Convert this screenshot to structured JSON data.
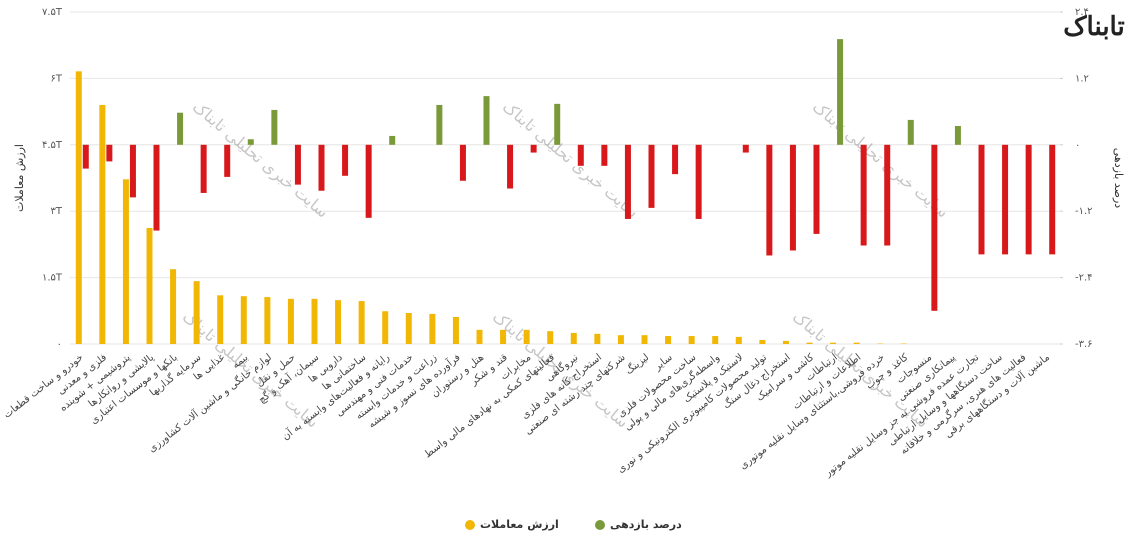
{
  "chart_data": {
    "type": "bar",
    "logo": "تابناک",
    "watermark": "سایت خبری تحلیلی تابناک",
    "ylabel": "ارزش معاملات",
    "y2label": "درصد بازدهی",
    "categories": [
      "خودرو و ساخت قطعات",
      "فلزی و معدنی",
      "پتروشیمی + شوینده",
      "پالایشی و روانکارها",
      "بانکها و موسسات اعتباری",
      "سرمایه گذاریها",
      "غذایی ها",
      "بیمه",
      "لوازم خانگی و ماشین آلات کشاورزی",
      "حمل و نقل",
      "سیمان، آهک و گچ",
      "دارویی ها",
      "ساختمانی ها",
      "رایانه و فعالیت‌های وابسته به آن",
      "خدمات فنی و مهندسی",
      "زراعت و خدمات وابسته",
      "فرآورده های نسوز و شیشه",
      "هتل و رستوران",
      "قند و شکر",
      "مخابرات",
      "فعالیتهای کمکی به نهادهای مالی واسط",
      "نیروگاهی",
      "استخراج کانه های فلزی",
      "شرکتهای چند رشته ای صنعتی",
      "لیزینگ",
      "سایر",
      "ساخت محصولات فلزی",
      "واسطه‌گری‌های مالی و پولی",
      "لاستیک و پلاستیک",
      "تولید محصولات کامپیوتری الکترونیکی و نوری",
      "استخراج ذغال سنگ",
      "کاشی و سرامیک",
      "ارتباطات",
      "اطلاعات و ارتباطات",
      "خرده فروشی،باستثنای وسایل نقلیه موتوری",
      "کاغذ و چوب",
      "منسوجات",
      "پیمانکاری صنعتی",
      "تجارت عمده فروشی به جز وسایل نقلیه موتور",
      "ساخت دستگاهها و وسایل ارتباطی",
      "فعالیت های هنری، سرگرمی و خلاقانه",
      "ماشین آلات و دستگاههای برقی"
    ],
    "series": [
      {
        "name": "ارزش معاملات",
        "color": "#f2b705",
        "values": [
          6.16,
          5.4,
          3.72,
          2.62,
          1.69,
          1.42,
          1.1,
          1.08,
          1.06,
          1.02,
          1.02,
          0.99,
          0.97,
          0.74,
          0.7,
          0.68,
          0.61,
          0.32,
          0.32,
          0.32,
          0.29,
          0.25,
          0.23,
          0.2,
          0.2,
          0.18,
          0.18,
          0.18,
          0.16,
          0.09,
          0.07,
          0.03,
          0.03,
          0.03,
          0.01,
          0.01,
          0,
          0,
          0,
          0,
          0,
          0
        ]
      },
      {
        "name": "درصد بازدهی",
        "color": "#7a9a3a",
        "negative_color": "#d7191c",
        "axis": "y2",
        "values": [
          -0.43,
          -0.3,
          -0.95,
          -1.55,
          0.58,
          -0.87,
          -0.58,
          0.1,
          0.63,
          -0.72,
          -0.83,
          -0.56,
          -1.32,
          0.16,
          0,
          0.72,
          -0.65,
          0.88,
          -0.79,
          -0.14,
          0.74,
          -0.38,
          -0.38,
          -1.34,
          -1.14,
          -0.53,
          -1.34,
          0,
          -0.14,
          -2.0,
          -1.91,
          -1.61,
          1.91,
          -1.82,
          -1.82,
          0.45,
          -3.0,
          0.34,
          -1.98,
          -1.98,
          -1.98,
          -1.98
        ]
      }
    ],
    "ylim": [
      0,
      7.5
    ],
    "yticks": [
      {
        "value": 0,
        "label": "۰"
      },
      {
        "value": 1.5,
        "label": "۱.۵T"
      },
      {
        "value": 3,
        "label": "۳T"
      },
      {
        "value": 4.5,
        "label": "۴.۵T"
      },
      {
        "value": 6,
        "label": "۶T"
      },
      {
        "value": 7.5,
        "label": "۷.۵T"
      }
    ],
    "y2lim": [
      -3.6,
      2.4
    ],
    "y2ticks": [
      {
        "value": -3.6,
        "label": "-۳.۶"
      },
      {
        "value": -2.4,
        "label": "-۲.۴"
      },
      {
        "value": -1.2,
        "label": "-۱.۲"
      },
      {
        "value": 0,
        "label": "۰"
      },
      {
        "value": 1.2,
        "label": "۱.۲"
      },
      {
        "value": 2.4,
        "label": "۲.۴"
      }
    ],
    "grid": true
  }
}
